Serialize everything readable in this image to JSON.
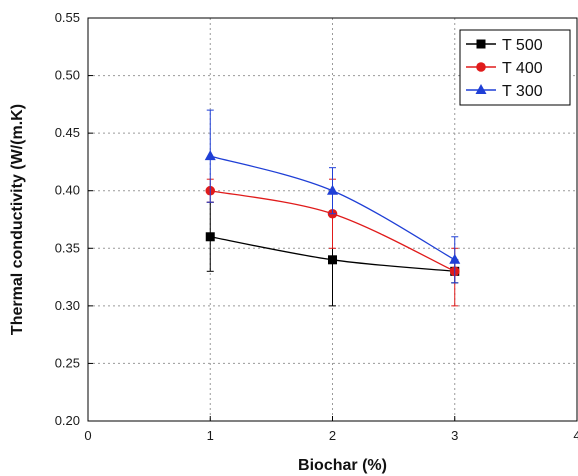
{
  "chart_data": {
    "type": "line",
    "xlabel": "Biochar (%)",
    "ylabel": "Thermal conductivity (W/(m.K)",
    "xlim": [
      0,
      4
    ],
    "ylim": [
      0.2,
      0.55
    ],
    "x_ticks": [
      "0",
      "1",
      "2",
      "3",
      "4"
    ],
    "y_ticks": [
      "0.20",
      "0.25",
      "0.30",
      "0.35",
      "0.40",
      "0.45",
      "0.50",
      "0.55"
    ],
    "grid": "dotted",
    "legend_position": "top-right",
    "series": [
      {
        "name": "T 500",
        "color": "#000000",
        "marker": "square",
        "x": [
          1,
          2,
          3
        ],
        "y": [
          0.36,
          0.34,
          0.33
        ],
        "err_low": [
          0.33,
          0.3,
          0.32
        ],
        "err_high": [
          0.39,
          0.38,
          0.34
        ]
      },
      {
        "name": "T 400",
        "color": "#e01b1b",
        "marker": "circle",
        "x": [
          1,
          2,
          3
        ],
        "y": [
          0.4,
          0.38,
          0.33
        ],
        "err_low": [
          0.39,
          0.35,
          0.3
        ],
        "err_high": [
          0.41,
          0.41,
          0.35
        ]
      },
      {
        "name": "T 300",
        "color": "#1f3fd6",
        "marker": "triangle",
        "x": [
          1,
          2,
          3
        ],
        "y": [
          0.43,
          0.4,
          0.34
        ],
        "err_low": [
          0.39,
          0.38,
          0.32
        ],
        "err_high": [
          0.47,
          0.42,
          0.36
        ]
      }
    ]
  }
}
